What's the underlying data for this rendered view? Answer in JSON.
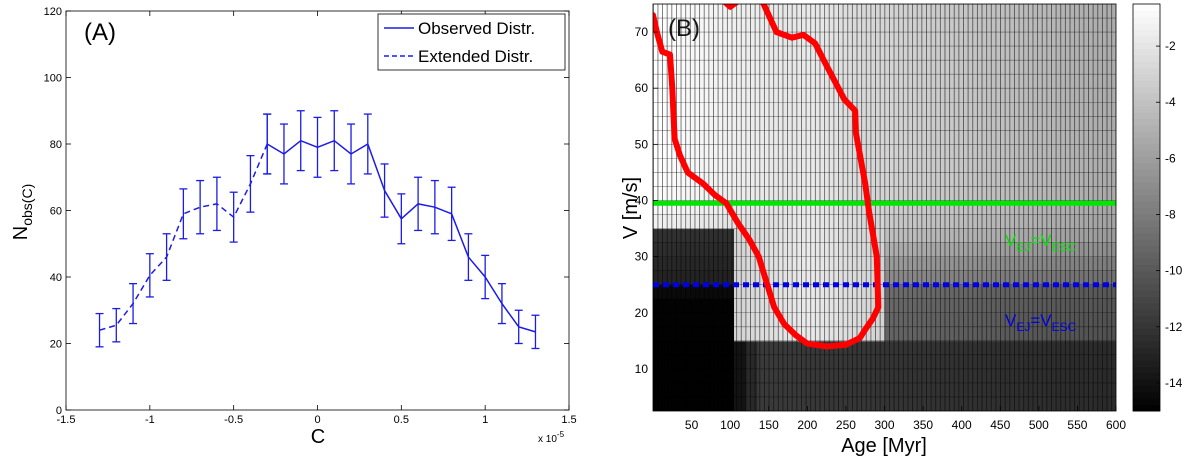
{
  "chart_data": [
    {
      "type": "line",
      "panel_label": "(A)",
      "xlabel": "C",
      "ylabel_main": "N",
      "ylabel_sub": "obs(C)",
      "x_multiplier_label": "x 10",
      "x_multiplier_exp": "-5",
      "xlim": [
        -1.5,
        1.5
      ],
      "ylim": [
        0,
        120
      ],
      "xticks": [
        -1.5,
        -1,
        -0.5,
        0,
        0.5,
        1,
        1.5
      ],
      "xtick_labels": [
        "-1.5",
        "-1",
        "-0.5",
        "0",
        "0.5",
        "1",
        "1.5"
      ],
      "yticks": [
        0,
        20,
        40,
        60,
        80,
        100,
        120
      ],
      "ytick_labels": [
        "0",
        "20",
        "40",
        "60",
        "80",
        "100",
        "120"
      ],
      "grid": false,
      "legend_position": "top-right",
      "series": [
        {
          "name": "Observed Distr.",
          "style": "solid",
          "color": "#1c1ce6",
          "x": [
            -0.3,
            -0.2,
            -0.1,
            0,
            0.1,
            0.2,
            0.3,
            0.4,
            0.5,
            0.6,
            0.7,
            0.8,
            0.9,
            1.0,
            1.1,
            1.2,
            1.3
          ],
          "y": [
            80,
            77,
            81,
            79,
            81,
            77,
            80,
            66,
            57.5,
            62,
            61,
            59,
            46,
            40,
            32,
            25,
            23.5
          ],
          "err": [
            9,
            9,
            9,
            9,
            9,
            9,
            9,
            8,
            7.5,
            8,
            8,
            8,
            7,
            6.5,
            6,
            5,
            5
          ]
        },
        {
          "name": "Extended Distr.",
          "style": "dashed",
          "color": "#1c1ce6",
          "x": [
            -1.3,
            -1.2,
            -1.1,
            -1.0,
            -0.9,
            -0.8,
            -0.7,
            -0.6,
            -0.5,
            -0.4,
            -0.3
          ],
          "y": [
            24,
            25.5,
            32,
            40.5,
            46,
            59,
            61,
            62,
            58,
            68,
            80
          ],
          "err": [
            5,
            5,
            6,
            6.5,
            7,
            7.5,
            8,
            8,
            7.5,
            8.5,
            9
          ]
        }
      ]
    },
    {
      "type": "heatmap",
      "panel_label": "(B)",
      "xlabel": "Age [Myr]",
      "ylabel": "V [m/s]",
      "xlim": [
        0,
        600
      ],
      "ylim": [
        2.5,
        75
      ],
      "xticks": [
        50,
        100,
        150,
        200,
        250,
        300,
        350,
        400,
        450,
        500,
        550,
        600
      ],
      "xtick_labels": [
        "50",
        "100",
        "150",
        "200",
        "250",
        "300",
        "350",
        "400",
        "450",
        "500",
        "550",
        "600"
      ],
      "yticks": [
        10,
        20,
        30,
        40,
        50,
        60,
        70
      ],
      "ytick_labels": [
        "10",
        "20",
        "30",
        "40",
        "50",
        "60",
        "70"
      ],
      "colorbar_ticks": [
        -2,
        -4,
        -6,
        -8,
        -10,
        -12,
        -14
      ],
      "colorbar_tick_labels": [
        "-2",
        "-4",
        "-6",
        "-8",
        "-10",
        "-12",
        "-14"
      ],
      "colorbar_range": [
        -15,
        -0.5
      ],
      "colormap": "gray",
      "contour_color": "#ff0000",
      "contour": [
        [
          0,
          73
        ],
        [
          5,
          70
        ],
        [
          12,
          66.5
        ],
        [
          22,
          66
        ],
        [
          25,
          60
        ],
        [
          28,
          51
        ],
        [
          35,
          48
        ],
        [
          45,
          45
        ],
        [
          55,
          44
        ],
        [
          65,
          43
        ],
        [
          80,
          41
        ],
        [
          95,
          39.5
        ],
        [
          110,
          36
        ],
        [
          125,
          33
        ],
        [
          137,
          30
        ],
        [
          147,
          25.5
        ],
        [
          157,
          21
        ],
        [
          170,
          18
        ],
        [
          185,
          16
        ],
        [
          200,
          14.5
        ],
        [
          225,
          14
        ],
        [
          250,
          14.3
        ],
        [
          268,
          15.5
        ],
        [
          275,
          17
        ],
        [
          285,
          19
        ],
        [
          292,
          21
        ],
        [
          290,
          30
        ],
        [
          280,
          38
        ],
        [
          275,
          43
        ],
        [
          263,
          52
        ],
        [
          262,
          56
        ],
        [
          248,
          58
        ],
        [
          225,
          64
        ],
        [
          210,
          68
        ],
        [
          195,
          69.5
        ],
        [
          180,
          69
        ],
        [
          160,
          70
        ],
        [
          150,
          73
        ],
        [
          140,
          76
        ],
        [
          125,
          78
        ],
        [
          115,
          76
        ],
        [
          100,
          74.5
        ],
        [
          88,
          76
        ],
        [
          80,
          78
        ]
      ],
      "hlines": [
        {
          "y": 39.5,
          "style": "solid",
          "color": "#00e600",
          "label_main": "V",
          "label_sub1": "EJ",
          "label_mid": "=V",
          "label_sub2": "ESC"
        },
        {
          "y": 25,
          "style": "dashed",
          "color": "#0000e6",
          "label_main": "V",
          "label_sub1": "EJ",
          "label_mid": "=V",
          "label_sub2": "ESC"
        }
      ]
    }
  ]
}
